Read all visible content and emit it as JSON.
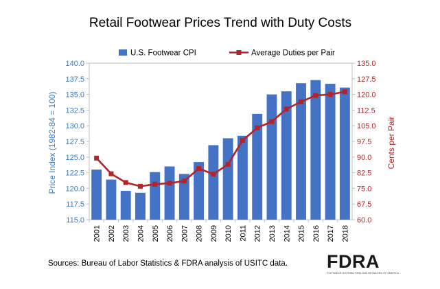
{
  "chart_data": {
    "type": "bar",
    "title": "Retail Footwear Prices Trend with Duty Costs",
    "categories": [
      "2001",
      "2002",
      "2003",
      "2004",
      "2005",
      "2006",
      "2007",
      "2008",
      "2009",
      "2010",
      "2011",
      "2012",
      "2013",
      "2014",
      "2015",
      "2016",
      "2017",
      "2018"
    ],
    "series": [
      {
        "name": "U.S. Footwear CPI",
        "type": "bar",
        "axis": "left",
        "color": "#4472c4",
        "values": [
          123.0,
          121.4,
          119.6,
          119.3,
          122.6,
          123.5,
          122.3,
          124.2,
          126.9,
          128.0,
          128.4,
          131.9,
          135.0,
          135.5,
          136.8,
          137.3,
          136.7,
          136.1
        ]
      },
      {
        "name": "Average Duties per Pair",
        "type": "line",
        "axis": "right",
        "color": "#b32428",
        "values": [
          89.5,
          82.0,
          77.8,
          76.0,
          77.0,
          77.5,
          78.5,
          84.5,
          81.8,
          86.5,
          98.0,
          104.0,
          107.0,
          113.0,
          116.5,
          119.5,
          120.0,
          121.3
        ]
      }
    ],
    "yaxis_left": {
      "label": "Price Index (1982-84 = 100)",
      "range": [
        115.0,
        140.0
      ],
      "ticks": [
        "115.0",
        "117.5",
        "120.0",
        "122.5",
        "125.0",
        "127.5",
        "130.0",
        "132.5",
        "135.0",
        "137.5",
        "140.0"
      ]
    },
    "yaxis_right": {
      "label": "Cents per Pair",
      "range": [
        60.0,
        135.0
      ],
      "ticks": [
        "60.0",
        "67.5",
        "75.0",
        "82.5",
        "90.0",
        "97.5",
        "105.0",
        "112.5",
        "120.0",
        "127.5",
        "135.0"
      ]
    },
    "grid": false,
    "legend": "top-center",
    "xlabel": ""
  },
  "footer": {
    "source": "Sources:  Bureau of Labor Statistics & FDRA analysis of USITC data."
  },
  "logo": {
    "wordmark": "FDRA",
    "tagline": "FOOTWEAR DISTRIBUTORS AND RETAILERS OF AMERICA"
  }
}
